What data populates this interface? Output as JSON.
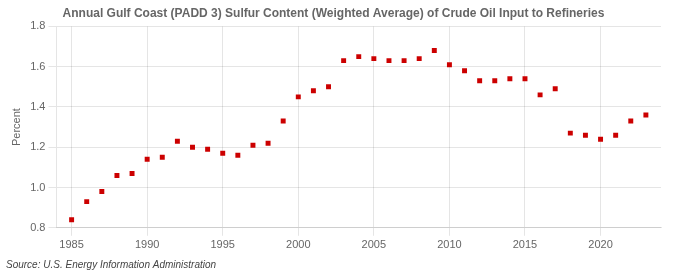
{
  "chart_data": {
    "type": "scatter",
    "title": "Annual Gulf Coast (PADD 3) Sulfur Content (Weighted Average) of Crude Oil Input to Refineries",
    "ylabel": "Percent",
    "annotations": [
      "Source: U.S. Energy Information Administration"
    ],
    "x": [
      1985,
      1986,
      1987,
      1988,
      1989,
      1990,
      1991,
      1992,
      1993,
      1994,
      1995,
      1996,
      1997,
      1998,
      1999,
      2000,
      2001,
      2002,
      2003,
      2004,
      2005,
      2006,
      2007,
      2008,
      2009,
      2010,
      2011,
      2012,
      2013,
      2014,
      2015,
      2016,
      2017,
      2018,
      2019,
      2020,
      2021,
      2022,
      2023
    ],
    "values": [
      0.84,
      0.93,
      0.98,
      1.06,
      1.07,
      1.14,
      1.15,
      1.23,
      1.2,
      1.19,
      1.17,
      1.16,
      1.21,
      1.22,
      1.33,
      1.45,
      1.48,
      1.5,
      1.63,
      1.65,
      1.64,
      1.63,
      1.63,
      1.64,
      1.68,
      1.61,
      1.58,
      1.53,
      1.53,
      1.54,
      1.54,
      1.46,
      1.49,
      1.27,
      1.26,
      1.24,
      1.26,
      1.33,
      1.36
    ],
    "color": "#cc0000",
    "marker": "square",
    "xlim": [
      1984,
      2024
    ],
    "xticks": [
      1985,
      1990,
      1995,
      2000,
      2005,
      2010,
      2015,
      2020
    ],
    "ylim": [
      0.8,
      1.8
    ],
    "yticks": [
      0.8,
      {
        "value": 1.0,
        "label": "1.0"
      },
      1.2,
      1.4,
      1.6,
      1.8
    ],
    "grid": true
  }
}
